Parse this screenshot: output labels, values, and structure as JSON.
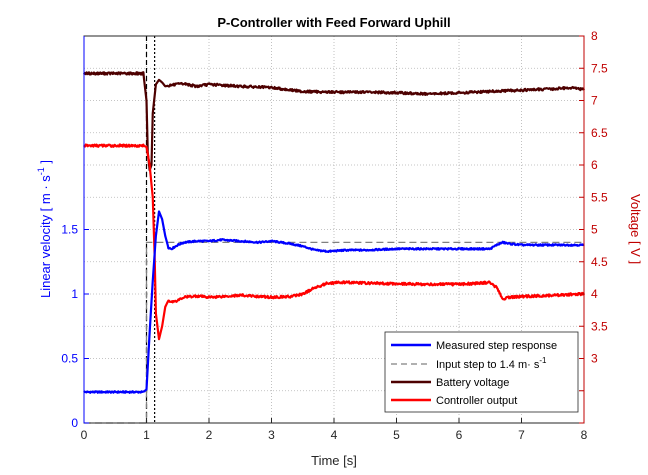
{
  "chart_data": {
    "type": "line",
    "title": "P-Controller with Feed Forward Uphill",
    "xlabel": "Time [s]",
    "ylabel_left": "Linear velocity [ m · s",
    "ylabel_left_sup": "-1",
    "ylabel_left_end": " ]",
    "ylabel_right": "Voltage [ V ]",
    "xlim": [
      0,
      8
    ],
    "ylim_left": [
      0,
      3.0
    ],
    "ylim_right": [
      2,
      8
    ],
    "xticks": [
      "0",
      "1",
      "2",
      "3",
      "4",
      "5",
      "6",
      "7",
      "8"
    ],
    "yticks_left": [
      "0",
      "0.5",
      "1",
      "1.5"
    ],
    "yticks_right": [
      "3",
      "3.5",
      "4",
      "4.5",
      "5",
      "5.5",
      "6",
      "6.5",
      "7",
      "7.5",
      "8"
    ],
    "grid": true,
    "legend_placement": "bottom-right",
    "vertical_markers": [
      1.0,
      1.13
    ],
    "colors": {
      "measured": "#0000ff",
      "input": "#808080",
      "battery": "#4d0000",
      "controller": "#ff0000",
      "left_axis": "#0000ff",
      "right_axis": "#c00000"
    },
    "series": [
      {
        "name": "Measured step response",
        "axis": "left",
        "x": [
          0,
          0.5,
          0.95,
          1.0,
          1.05,
          1.1,
          1.15,
          1.2,
          1.25,
          1.3,
          1.35,
          1.4,
          1.5,
          1.6,
          1.8,
          2.0,
          2.2,
          2.5,
          2.8,
          3.0,
          3.3,
          3.5,
          3.7,
          3.9,
          4.2,
          4.5,
          5.0,
          5.5,
          6.0,
          6.5,
          6.6,
          6.7,
          6.8,
          7.0,
          7.5,
          8.0
        ],
        "y": [
          0.24,
          0.24,
          0.24,
          0.26,
          0.7,
          1.1,
          1.45,
          1.64,
          1.58,
          1.45,
          1.36,
          1.35,
          1.38,
          1.4,
          1.41,
          1.41,
          1.42,
          1.41,
          1.4,
          1.41,
          1.39,
          1.37,
          1.34,
          1.33,
          1.34,
          1.34,
          1.35,
          1.35,
          1.35,
          1.35,
          1.38,
          1.4,
          1.39,
          1.38,
          1.38,
          1.38
        ]
      },
      {
        "name": "Input step to 1.4 m· s",
        "name_sup": "-1",
        "axis": "left",
        "x": [
          0,
          1.0,
          1.0,
          8.0
        ],
        "y": [
          0,
          0,
          1.4,
          1.4
        ]
      },
      {
        "name": "Battery voltage",
        "axis": "right",
        "x": [
          0,
          0.5,
          0.95,
          1.0,
          1.02,
          1.05,
          1.08,
          1.1,
          1.15,
          1.2,
          1.25,
          1.3,
          1.4,
          1.6,
          1.8,
          2.0,
          2.5,
          3.0,
          3.5,
          4.0,
          4.5,
          5.0,
          5.5,
          6.0,
          6.5,
          7.0,
          7.5,
          7.8,
          8.0
        ],
        "y": [
          7.42,
          7.42,
          7.42,
          7.0,
          6.2,
          5.92,
          6.0,
          6.8,
          7.25,
          7.32,
          7.28,
          7.22,
          7.24,
          7.26,
          7.22,
          7.25,
          7.22,
          7.2,
          7.14,
          7.13,
          7.13,
          7.12,
          7.1,
          7.12,
          7.14,
          7.16,
          7.18,
          7.2,
          7.17
        ]
      },
      {
        "name": "Controller output",
        "axis": "right",
        "x": [
          0,
          0.5,
          0.95,
          1.0,
          1.05,
          1.1,
          1.13,
          1.15,
          1.2,
          1.25,
          1.3,
          1.35,
          1.4,
          1.5,
          1.6,
          1.8,
          2.0,
          2.5,
          3.0,
          3.3,
          3.5,
          3.7,
          3.9,
          4.2,
          4.5,
          5.0,
          5.5,
          6.0,
          6.5,
          6.6,
          6.7,
          6.8,
          7.0,
          7.5,
          8.0
        ],
        "y": [
          6.3,
          6.3,
          6.3,
          6.28,
          6.0,
          5.5,
          4.6,
          3.7,
          3.3,
          3.5,
          3.8,
          3.9,
          3.88,
          3.9,
          3.95,
          3.97,
          3.95,
          3.98,
          3.95,
          3.96,
          4.0,
          4.1,
          4.17,
          4.18,
          4.17,
          4.16,
          4.15,
          4.15,
          4.18,
          4.1,
          3.92,
          3.95,
          3.96,
          3.98,
          4.0
        ]
      }
    ]
  }
}
